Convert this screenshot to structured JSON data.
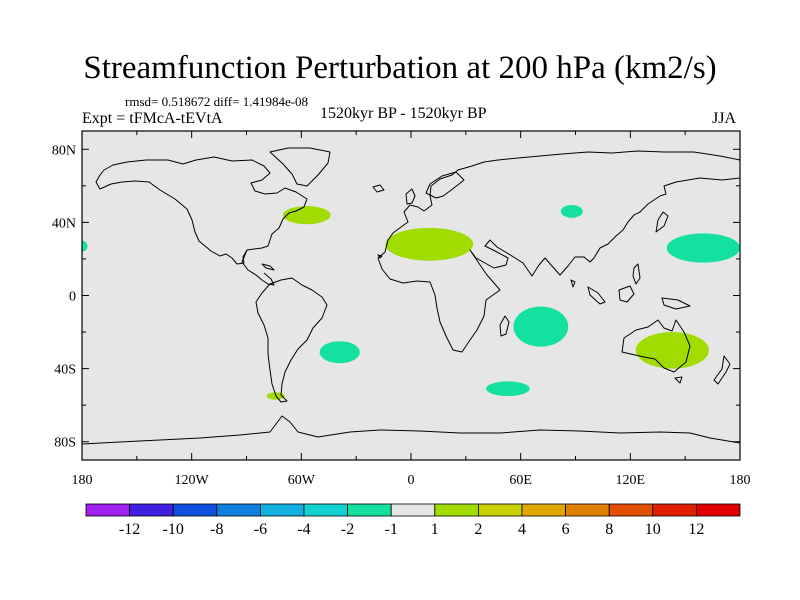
{
  "header": {
    "title": "Streamfunction Perturbation at 200 hPa (km2/s)",
    "stats": "rmsd= 0.518672 diff= 1.41984e-08",
    "experiment": "Expt = tFMcA-tEVtA",
    "period": "1520kyr BP - 1520kyr BP",
    "season": "JJA"
  },
  "chart_data": {
    "type": "filled contour map",
    "projection": "cylindrical equidistant",
    "xlim": [
      -180,
      180
    ],
    "ylim": [
      -90,
      90
    ],
    "x_tick_values": [
      -180,
      -120,
      -60,
      0,
      60,
      120,
      180
    ],
    "x_tick_labels": [
      "180",
      "120W",
      "60W",
      "0",
      "60E",
      "120E",
      "180"
    ],
    "y_tick_values": [
      80,
      40,
      0,
      -40,
      -80
    ],
    "y_tick_labels": [
      "80N",
      "40N",
      "0",
      "40S",
      "80S"
    ],
    "background_color": "#e6e6e6",
    "anomalies": [
      {
        "name": "north-atlantic-positive",
        "lon": -57,
        "lat": 44,
        "rlon": 13,
        "rlat": 5,
        "level": "1 to 2",
        "color": "#a0dc00"
      },
      {
        "name": "north-africa-positive",
        "lon": 10,
        "lat": 28,
        "rlon": 24,
        "rlat": 9,
        "level": "1 to 2",
        "color": "#a0dc00"
      },
      {
        "name": "australia-positive",
        "lon": 143,
        "lat": -30,
        "rlon": 20,
        "rlat": 10,
        "level": "1 to 2",
        "color": "#a0dc00"
      },
      {
        "name": "far-south-america-positive",
        "lon": -74,
        "lat": -55,
        "rlon": 5,
        "rlat": 2,
        "level": "1 to 2",
        "color": "#a0dc00"
      },
      {
        "name": "north-pacific-negative",
        "lon": 160,
        "lat": 26,
        "rlon": 20,
        "rlat": 8,
        "level": "-2 to -1",
        "color": "#14e0a0"
      },
      {
        "name": "central-asia-negative",
        "lon": 88,
        "lat": 46,
        "rlon": 6,
        "rlat": 3.5,
        "level": "-2 to -1",
        "color": "#14e0a0"
      },
      {
        "name": "southern-indian-ocean-negative",
        "lon": 71,
        "lat": -17,
        "rlon": 15,
        "rlat": 11,
        "level": "-2 to -1",
        "color": "#14e0a0"
      },
      {
        "name": "south-atlantic-negative",
        "lon": -39,
        "lat": -31,
        "rlon": 11,
        "rlat": 6,
        "level": "-2 to -1",
        "color": "#14e0a0"
      },
      {
        "name": "southern-ocean-negative",
        "lon": 53,
        "lat": -51,
        "rlon": 12,
        "rlat": 4,
        "level": "-2 to -1",
        "color": "#14e0a0"
      },
      {
        "name": "west-edge-negative",
        "lon": -180,
        "lat": 27,
        "rlon": 3,
        "rlat": 3,
        "level": "-2 to -1",
        "color": "#14e0a0"
      }
    ],
    "colorbar": {
      "labels": [
        "-12",
        "-10",
        "-8",
        "-6",
        "-4",
        "-2",
        "-1",
        "1",
        "2",
        "4",
        "6",
        "8",
        "10",
        "12"
      ],
      "colors": [
        "#a020f0",
        "#4020e0",
        "#1050e0",
        "#1080e0",
        "#10b0e0",
        "#10d0d0",
        "#14e0a0",
        "#e6e6e6",
        "#a0dc00",
        "#c8d000",
        "#e0a800",
        "#e08000",
        "#e05000",
        "#e02000",
        "#e00000"
      ]
    }
  }
}
